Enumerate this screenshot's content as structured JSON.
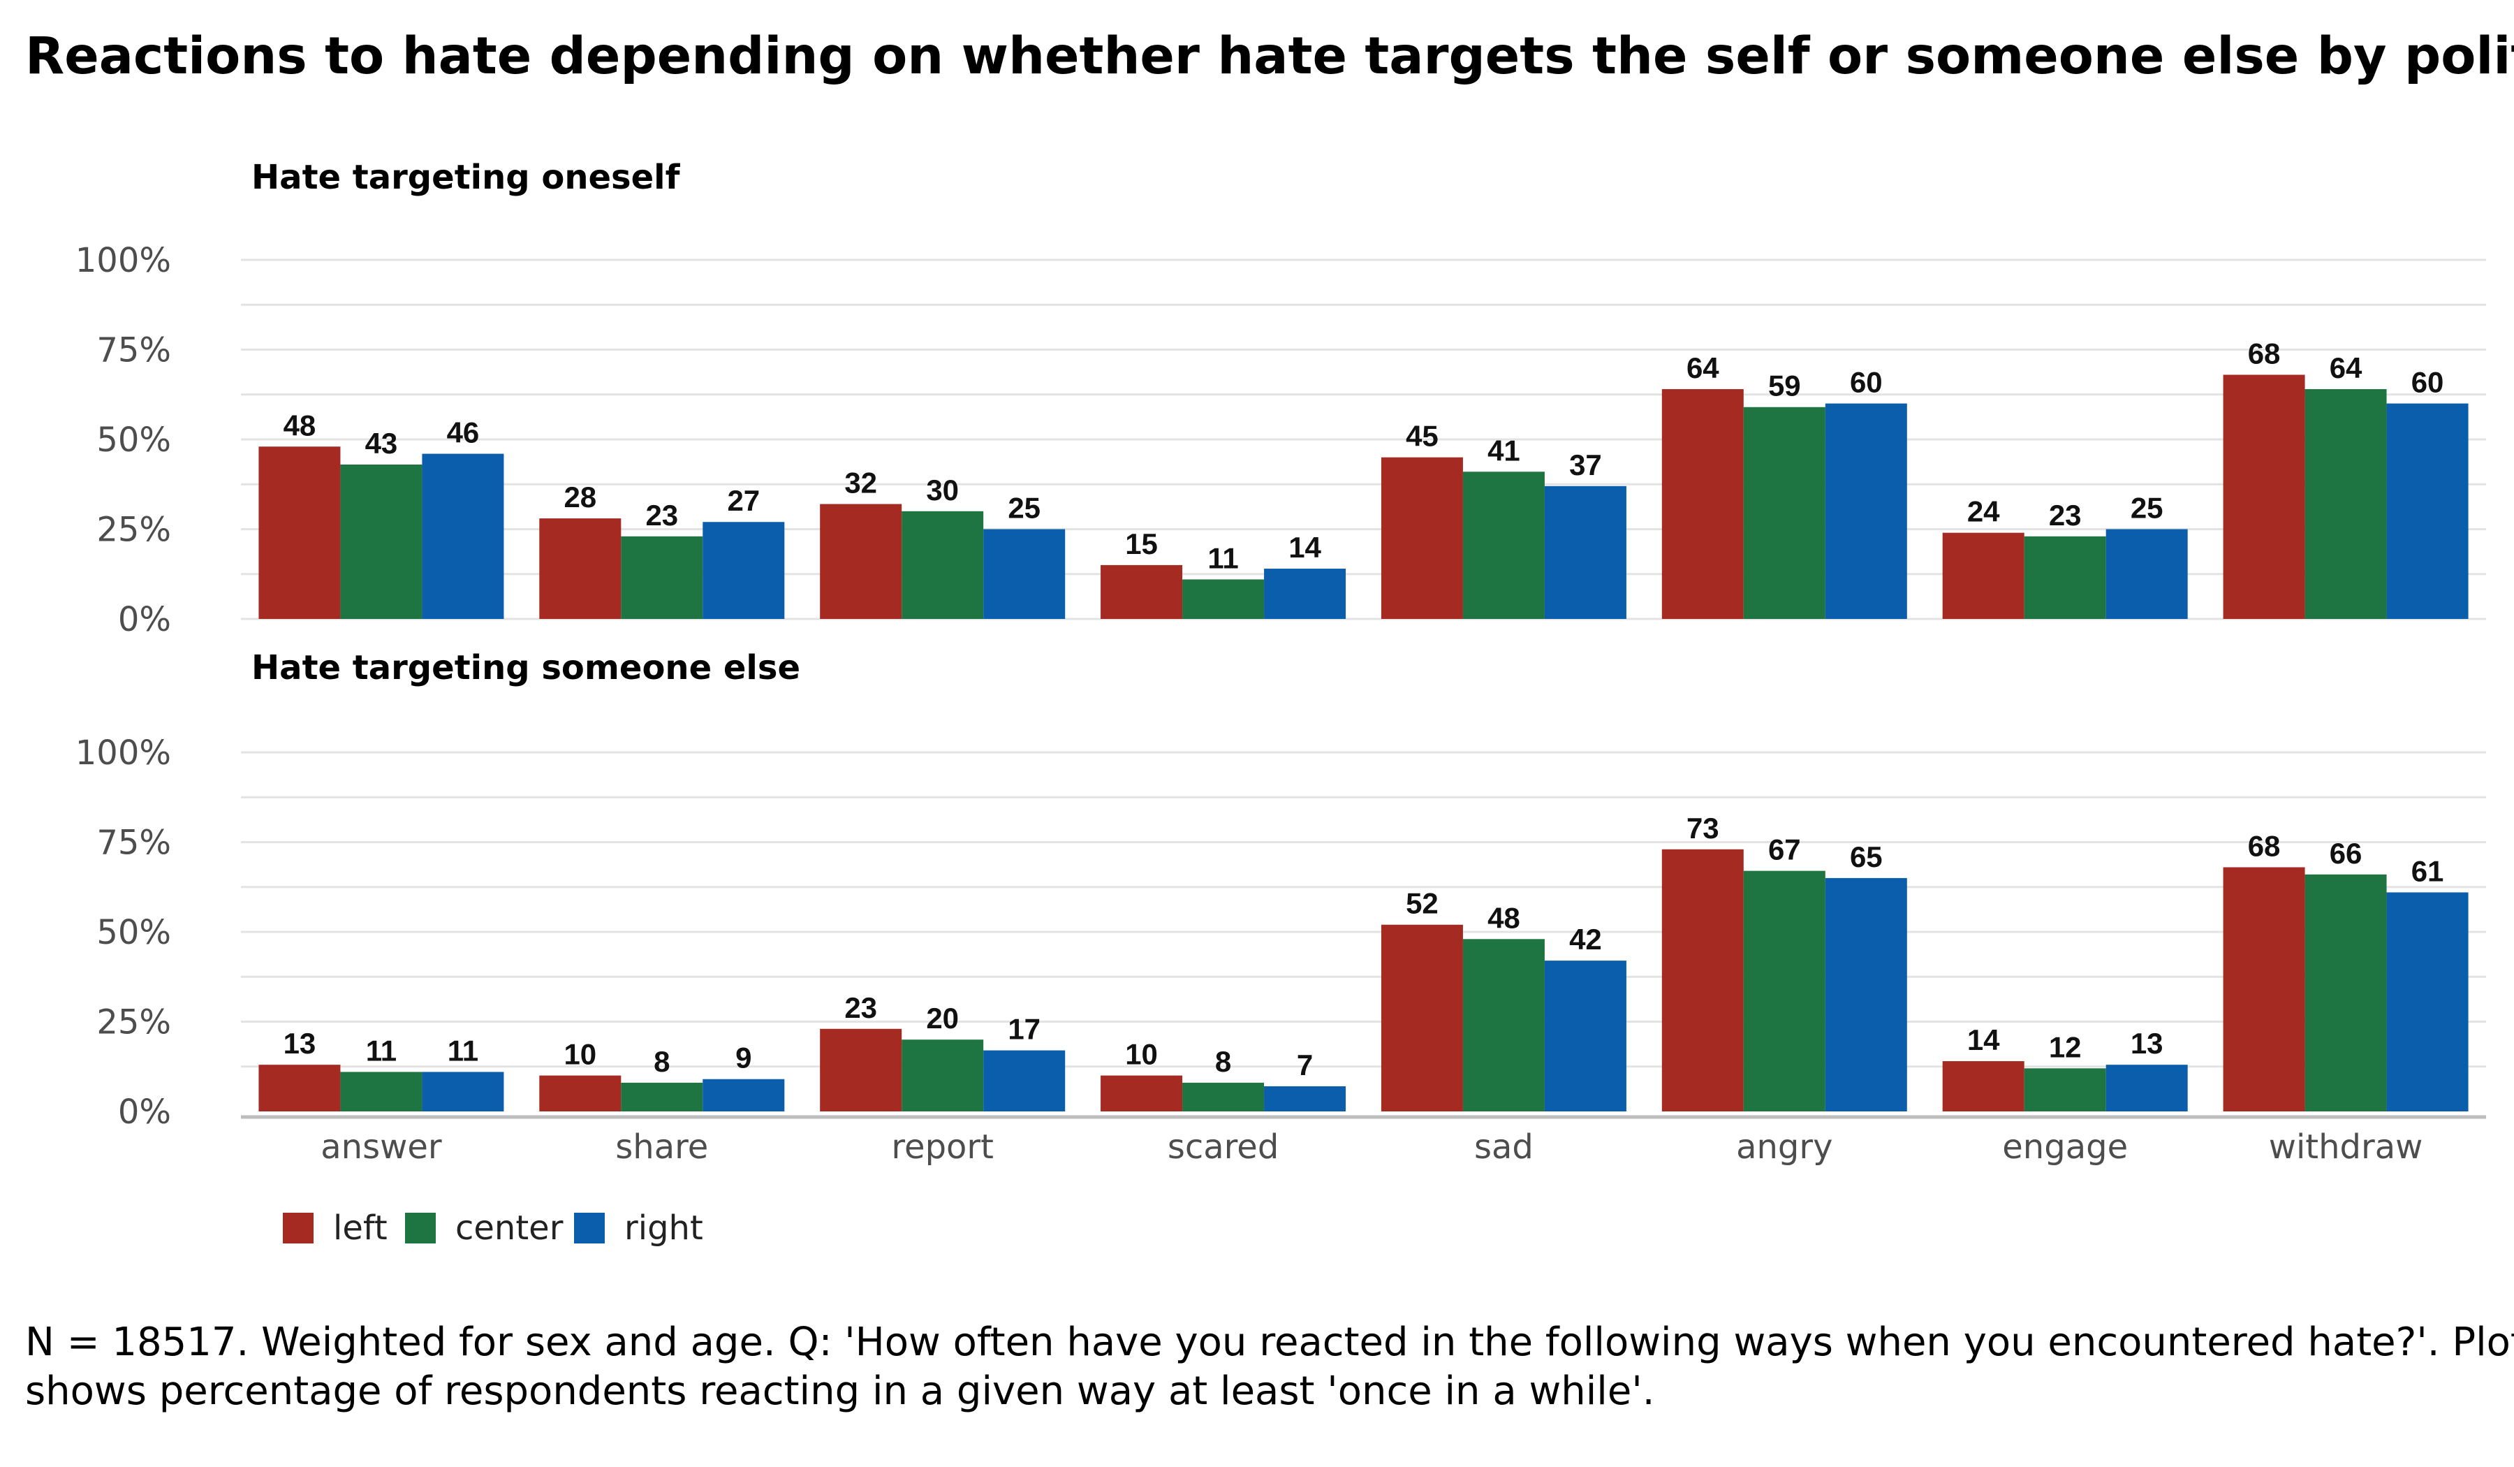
{
  "title": "Reactions to hate depending on whether hate targets the self or someone else by political leaning",
  "caption": [
    "N = 18517. Weighted for sex and age. Q: 'How often have you reacted in the following ways when you encountered hate?'. Plot",
    "shows percentage of respondents reacting in a given way at least 'once in a while'."
  ],
  "chart_data": {
    "type": "bar",
    "categories": [
      "answer",
      "share",
      "report",
      "scared",
      "sad",
      "angry",
      "engage",
      "withdraw"
    ],
    "yticks": [
      "0%",
      "25%",
      "50%",
      "75%",
      "100%"
    ],
    "ylim": [
      0,
      100
    ],
    "legend_position": "bottom-left",
    "series_colors": {
      "left": "#a52a22",
      "center": "#1f7541",
      "right": "#0b5eab"
    },
    "legend": [
      "left",
      "center",
      "right"
    ],
    "panels": [
      {
        "title": "Hate targeting oneself",
        "series": [
          {
            "name": "left",
            "values": [
              48,
              28,
              32,
              15,
              45,
              64,
              24,
              68
            ]
          },
          {
            "name": "center",
            "values": [
              43,
              23,
              30,
              11,
              41,
              59,
              23,
              64
            ]
          },
          {
            "name": "right",
            "values": [
              46,
              27,
              25,
              14,
              37,
              60,
              25,
              60
            ]
          }
        ]
      },
      {
        "title": "Hate targeting someone else",
        "series": [
          {
            "name": "left",
            "values": [
              13,
              10,
              23,
              10,
              52,
              73,
              14,
              68
            ]
          },
          {
            "name": "center",
            "values": [
              11,
              8,
              20,
              8,
              48,
              67,
              12,
              66
            ]
          },
          {
            "name": "right",
            "values": [
              11,
              9,
              17,
              7,
              42,
              65,
              13,
              61
            ]
          }
        ]
      }
    ]
  }
}
